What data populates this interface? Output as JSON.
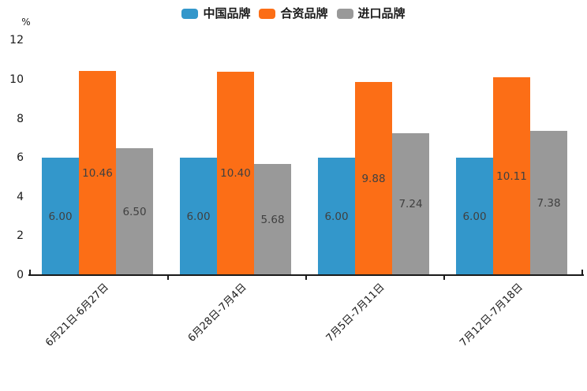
{
  "chart_data": {
    "type": "bar",
    "title": "",
    "unit_label": "%",
    "xlabel": "",
    "ylabel": "%",
    "ylim": [
      0,
      12
    ],
    "y_ticks": [
      0,
      2,
      4,
      6,
      8,
      10,
      12
    ],
    "grid": false,
    "legend_position": "top-center",
    "categories": [
      "6月21日-6月27日",
      "6月28日-7月4日",
      "7月5日-7月11日",
      "7月12日-7月18日"
    ],
    "series": [
      {
        "name": "中国品牌",
        "color": "#3397CB",
        "values": [
          6.0,
          6.0,
          6.0,
          6.0
        ]
      },
      {
        "name": "合资品牌",
        "color": "#FC6E16",
        "values": [
          10.46,
          10.4,
          9.88,
          10.11
        ]
      },
      {
        "name": "进口品牌",
        "color": "#999999",
        "values": [
          6.5,
          5.68,
          7.24,
          7.38
        ]
      }
    ],
    "value_label_decimals": 2
  },
  "colors": {
    "axis": "#1a1a1a",
    "value_label": "#404040",
    "tick_label": "#1a1a1a",
    "background": "#ffffff"
  }
}
